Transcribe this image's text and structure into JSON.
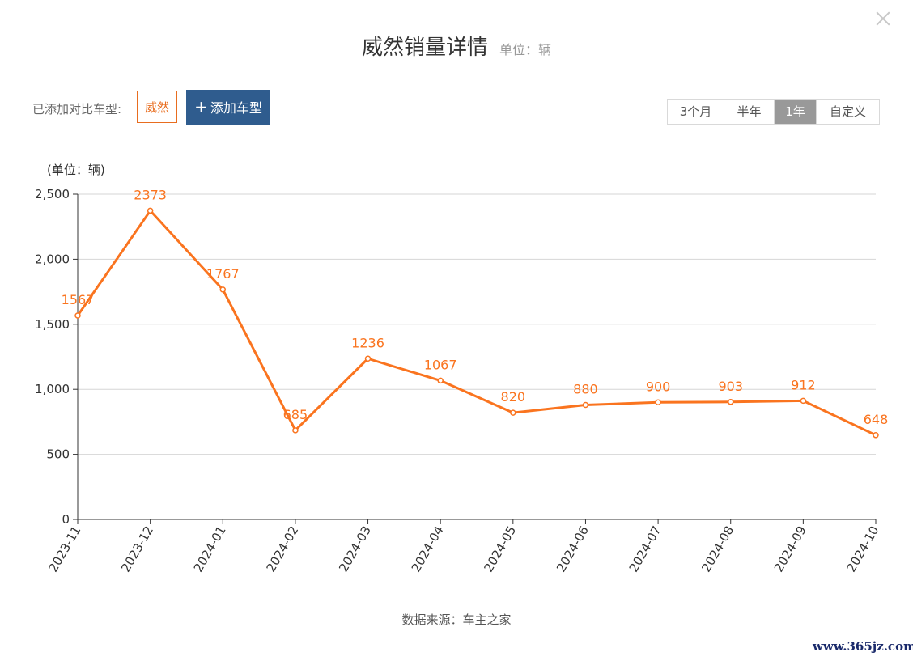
{
  "dialog": {
    "title": "威然销量详情",
    "unit": "单位：辆",
    "close_icon": "close-icon"
  },
  "compare": {
    "label": "已添加对比车型:",
    "models": [
      "威然"
    ],
    "add_button": "添加车型",
    "add_icon": "plus-icon"
  },
  "range_tabs": [
    {
      "label": "3个月",
      "active": false
    },
    {
      "label": "半年",
      "active": false
    },
    {
      "label": "1年",
      "active": true
    },
    {
      "label": "自定义",
      "active": false
    }
  ],
  "chart_data": {
    "type": "line",
    "unit_label": "(单位：辆)",
    "categories": [
      "2023-11",
      "2023-12",
      "2024-01",
      "2024-02",
      "2024-03",
      "2024-04",
      "2024-05",
      "2024-06",
      "2024-07",
      "2024-08",
      "2024-09",
      "2024-10"
    ],
    "series": [
      {
        "values": [
          1567,
          2373,
          1767,
          685,
          1236,
          1067,
          820,
          880,
          900,
          903,
          912,
          648
        ],
        "color": "#fa741f"
      }
    ],
    "ylim": [
      0,
      2500
    ],
    "yticks": [
      {
        "value": 0,
        "label": "0"
      },
      {
        "value": 500,
        "label": "500"
      },
      {
        "value": 1000,
        "label": "1,000"
      },
      {
        "value": 1500,
        "label": "1,500"
      },
      {
        "value": 2000,
        "label": "2,000"
      },
      {
        "value": 2500,
        "label": "2,500"
      }
    ],
    "grid": true,
    "data_labels": true
  },
  "footer": {
    "source": "数据来源：车主之家",
    "watermark": "www.365jz.com"
  },
  "colors": {
    "accent": "#fa741f",
    "button": "#2f5c8e",
    "active_tab": "#999999"
  }
}
